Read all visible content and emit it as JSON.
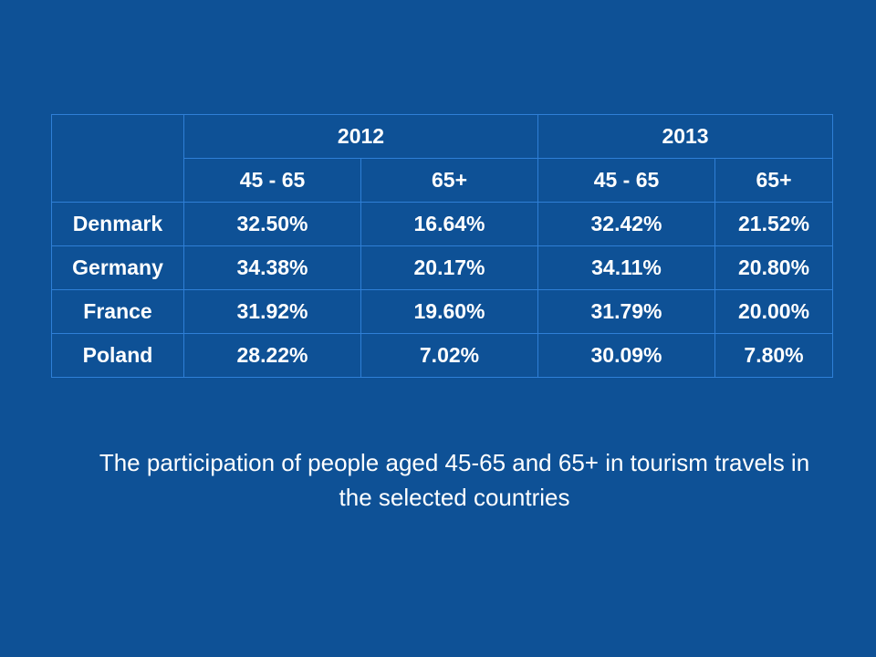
{
  "chart_data": {
    "type": "table",
    "years": [
      "2012",
      "2013"
    ],
    "age_groups": [
      "45 - 65",
      "65+",
      "45 - 65",
      "65+"
    ],
    "rows": [
      {
        "country": "Denmark",
        "values": [
          "32.50%",
          "16.64%",
          "32.42%",
          "21.52%"
        ]
      },
      {
        "country": "Germany",
        "values": [
          "34.38%",
          "20.17%",
          "34.11%",
          "20.80%"
        ]
      },
      {
        "country": "France",
        "values": [
          "31.92%",
          "19.60%",
          "31.79%",
          "20.00%"
        ]
      },
      {
        "country": "Poland",
        "values": [
          "28.22%",
          "7.02%",
          "30.09%",
          "7.80%"
        ]
      }
    ]
  },
  "caption": "The participation of people aged 45-65 and 65+ in tourism travels in the selected countries",
  "colors": {
    "background": "#0e5196",
    "border": "#2f7fd6",
    "text": "#ffffff"
  }
}
